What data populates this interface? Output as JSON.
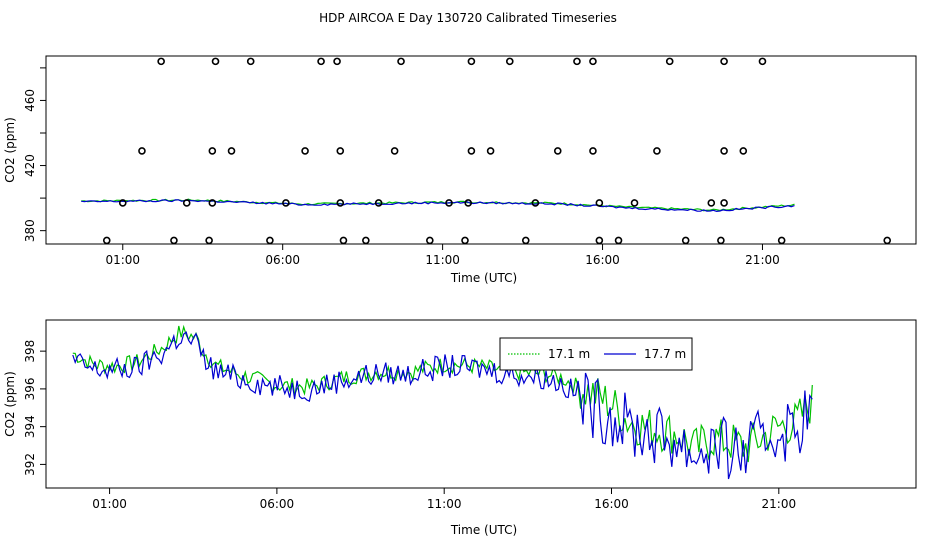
{
  "title": "HDP AIRCOA E  Day 130720  Calibrated Timeseries",
  "chart_data": [
    {
      "type": "scatter+line",
      "xlabel": "Time (UTC)",
      "ylabel": "CO2 (ppm)",
      "xlim": [
        -1.4,
        25.8
      ],
      "ylim": [
        371.8,
        487.3
      ],
      "x_ticks": [
        1,
        6,
        11,
        16,
        21
      ],
      "x_tick_labels": [
        "01:00",
        "06:00",
        "11:00",
        "16:00",
        "21:00"
      ],
      "y_ticks": [
        380,
        420,
        460
      ],
      "y_tick_labels": [
        "380",
        "420",
        "460"
      ],
      "points": [
        [
          2.2,
          484
        ],
        [
          3.9,
          484
        ],
        [
          5.0,
          484
        ],
        [
          7.2,
          484
        ],
        [
          7.7,
          484
        ],
        [
          9.7,
          484
        ],
        [
          11.9,
          484
        ],
        [
          13.1,
          484
        ],
        [
          15.2,
          484
        ],
        [
          15.7,
          484
        ],
        [
          18.1,
          484
        ],
        [
          19.8,
          484
        ],
        [
          21.0,
          484
        ],
        [
          1.6,
          429
        ],
        [
          3.8,
          429
        ],
        [
          4.4,
          429
        ],
        [
          6.7,
          429
        ],
        [
          7.8,
          429
        ],
        [
          9.5,
          429
        ],
        [
          11.9,
          429
        ],
        [
          12.5,
          429
        ],
        [
          14.6,
          429
        ],
        [
          15.7,
          429
        ],
        [
          17.7,
          429
        ],
        [
          19.8,
          429
        ],
        [
          20.4,
          429
        ],
        [
          1.0,
          397
        ],
        [
          3.0,
          397
        ],
        [
          3.8,
          397
        ],
        [
          6.1,
          397
        ],
        [
          7.8,
          397
        ],
        [
          9.0,
          397
        ],
        [
          11.2,
          397
        ],
        [
          11.8,
          397
        ],
        [
          13.9,
          397
        ],
        [
          15.9,
          397
        ],
        [
          17.0,
          397
        ],
        [
          19.4,
          397
        ],
        [
          19.8,
          397
        ],
        [
          0.5,
          374
        ],
        [
          2.6,
          374
        ],
        [
          3.7,
          374
        ],
        [
          5.6,
          374
        ],
        [
          7.9,
          374
        ],
        [
          8.6,
          374
        ],
        [
          10.6,
          374
        ],
        [
          11.7,
          374
        ],
        [
          13.6,
          374
        ],
        [
          15.9,
          374
        ],
        [
          16.5,
          374
        ],
        [
          18.6,
          374
        ],
        [
          19.7,
          374
        ],
        [
          21.6,
          374
        ],
        [
          24.9,
          374
        ]
      ],
      "series": [
        {
          "color": "#00c000",
          "profile": [
            [
              -0.3,
              398.2
            ],
            [
              3.2,
              398.8
            ],
            [
              6.7,
              396.3
            ],
            [
              11.4,
              397.6
            ],
            [
              14.5,
              396.9
            ],
            [
              17.0,
              394.2
            ],
            [
              19.5,
              392.6
            ],
            [
              22.0,
              395.8
            ]
          ]
        },
        {
          "color": "#0000d0",
          "profile": [
            [
              -0.3,
              397.8
            ],
            [
              3.2,
              398.5
            ],
            [
              6.7,
              396.0
            ],
            [
              11.4,
              397.3
            ],
            [
              14.5,
              396.5
            ],
            [
              17.0,
              393.8
            ],
            [
              19.5,
              392.2
            ],
            [
              22.0,
              395.4
            ]
          ]
        }
      ]
    },
    {
      "type": "line",
      "xlabel": "Time (UTC)",
      "ylabel": "CO2 (ppm)",
      "xlim": [
        -0.9,
        25.1
      ],
      "ylim": [
        390.75,
        399.65
      ],
      "x_ticks": [
        1,
        6,
        11,
        16,
        21
      ],
      "x_tick_labels": [
        "01:00",
        "06:00",
        "11:00",
        "16:00",
        "21:00"
      ],
      "y_ticks": [
        392,
        394,
        396,
        398
      ],
      "y_tick_labels": [
        "392",
        "394",
        "396",
        "398"
      ],
      "legend": {
        "position": "top-right"
      },
      "series": [
        {
          "name": "17.1 m",
          "color": "#00c000",
          "profile": [
            [
              -0.1,
              397.9
            ],
            [
              0.5,
              397.3
            ],
            [
              1.2,
              397.2
            ],
            [
              1.8,
              397.4
            ],
            [
              2.6,
              398.2
            ],
            [
              3.1,
              399.0
            ],
            [
              3.6,
              398.7
            ],
            [
              3.8,
              398.0
            ],
            [
              4.2,
              397.2
            ],
            [
              5.0,
              396.7
            ],
            [
              6.0,
              396.2
            ],
            [
              7.0,
              396.1
            ],
            [
              8.0,
              396.6
            ],
            [
              9.0,
              396.9
            ],
            [
              10.0,
              396.9
            ],
            [
              11.0,
              397.3
            ],
            [
              12.0,
              397.2
            ],
            [
              13.0,
              396.9
            ],
            [
              14.0,
              396.8
            ],
            [
              14.5,
              396.6
            ],
            [
              15.0,
              396.1
            ],
            [
              15.5,
              395.7
            ],
            [
              16.0,
              395.2
            ],
            [
              16.5,
              394.3
            ],
            [
              17.0,
              394.0
            ],
            [
              18.0,
              393.6
            ],
            [
              18.5,
              392.8
            ],
            [
              19.0,
              393.4
            ],
            [
              19.5,
              393.2
            ],
            [
              20.0,
              392.9
            ],
            [
              20.5,
              393.4
            ],
            [
              21.0,
              394.0
            ],
            [
              21.5,
              394.2
            ],
            [
              22.0,
              395.3
            ]
          ],
          "noise": 0.45
        },
        {
          "name": "17.7 m",
          "color": "#0000d0",
          "profile": [
            [
              -0.1,
              397.5
            ],
            [
              0.5,
              397.0
            ],
            [
              1.2,
              397.0
            ],
            [
              1.8,
              397.1
            ],
            [
              2.6,
              397.9
            ],
            [
              3.1,
              398.8
            ],
            [
              3.6,
              398.4
            ],
            [
              3.8,
              397.6
            ],
            [
              4.2,
              396.9
            ],
            [
              5.0,
              396.5
            ],
            [
              6.0,
              396.1
            ],
            [
              7.0,
              396.0
            ],
            [
              8.0,
              396.5
            ],
            [
              9.0,
              396.8
            ],
            [
              10.0,
              396.8
            ],
            [
              11.0,
              397.2
            ],
            [
              12.0,
              397.1
            ],
            [
              13.0,
              396.8
            ],
            [
              14.0,
              396.6
            ],
            [
              14.5,
              396.3
            ],
            [
              15.0,
              395.6
            ],
            [
              15.5,
              395.0
            ],
            [
              16.0,
              394.6
            ],
            [
              16.5,
              394.0
            ],
            [
              17.0,
              393.7
            ],
            [
              18.0,
              393.2
            ],
            [
              18.5,
              392.5
            ],
            [
              19.0,
              393.0
            ],
            [
              19.5,
              392.7
            ],
            [
              20.0,
              392.6
            ],
            [
              20.5,
              393.3
            ],
            [
              21.0,
              393.8
            ],
            [
              21.5,
              393.9
            ],
            [
              22.0,
              395.1
            ]
          ],
          "noise": 0.65
        }
      ]
    }
  ]
}
